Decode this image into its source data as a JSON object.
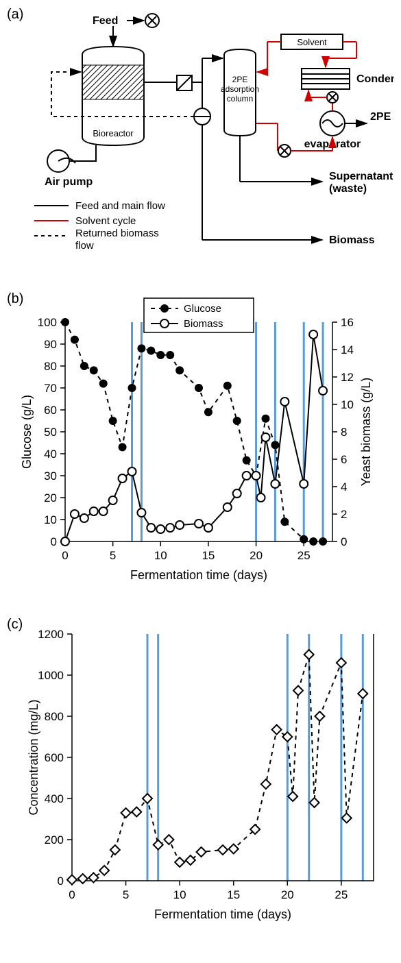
{
  "panelA": {
    "label": "(a)",
    "labels": {
      "feed": "Feed",
      "bioreactor": "Bioreactor",
      "airpump": "Air pump",
      "column": "2PE\nadsorption\ncolumn",
      "solvent": "Solvent",
      "condenser": "Condenser",
      "evaporator": "evaporator",
      "twoPE": "2PE",
      "supernatant": "Supernatant\n(waste)",
      "biomass": "Biomass"
    },
    "legend": [
      {
        "style": "solid",
        "color": "#000000",
        "text": "Feed and main flow"
      },
      {
        "style": "solid",
        "color": "#d00000",
        "text": "Solvent cycle"
      },
      {
        "style": "dash",
        "color": "#000000",
        "text": "Returned biomass\nflow"
      }
    ]
  },
  "panelB": {
    "label": "(b)",
    "xlabel": "Fermentation time (days)",
    "ylabel": "Glucose (g/L)",
    "y2label": "Yeast biomass (g/L)",
    "xlim": [
      0,
      28
    ],
    "xticks": [
      0,
      5,
      10,
      15,
      20,
      25
    ],
    "ylim": [
      0,
      100
    ],
    "yticks": [
      0,
      10,
      20,
      30,
      40,
      50,
      60,
      70,
      80,
      90,
      100
    ],
    "y2lim": [
      0,
      16
    ],
    "y2ticks": [
      0,
      2,
      4,
      6,
      8,
      10,
      12,
      14,
      16
    ],
    "vlines": [
      7,
      8,
      20,
      22,
      25,
      27
    ],
    "vline_color": "#5b9bd5",
    "legend": [
      {
        "marker": "filled",
        "dash": true,
        "text": "Glucose"
      },
      {
        "marker": "open",
        "dash": false,
        "text": "Biomass"
      }
    ],
    "glucose": [
      [
        0,
        100
      ],
      [
        1,
        92
      ],
      [
        2,
        80
      ],
      [
        3,
        78
      ],
      [
        4,
        72
      ],
      [
        5,
        55
      ],
      [
        6,
        43
      ],
      [
        7,
        70
      ],
      [
        8,
        88
      ],
      [
        9,
        87
      ],
      [
        10,
        85
      ],
      [
        11,
        85
      ],
      [
        12,
        78
      ],
      [
        14,
        70
      ],
      [
        15,
        59
      ],
      [
        17,
        71
      ],
      [
        18,
        55
      ],
      [
        19,
        37
      ],
      [
        20,
        30
      ],
      [
        21,
        56
      ],
      [
        22,
        44
      ],
      [
        23,
        9
      ],
      [
        25,
        1
      ],
      [
        26,
        0
      ],
      [
        27,
        0
      ]
    ],
    "biomass": [
      [
        0,
        0
      ],
      [
        1,
        2.0
      ],
      [
        2,
        1.7
      ],
      [
        3,
        2.2
      ],
      [
        4,
        2.2
      ],
      [
        5,
        3.0
      ],
      [
        6,
        4.6
      ],
      [
        7,
        5.1
      ],
      [
        8,
        2.1
      ],
      [
        9,
        1.0
      ],
      [
        10,
        0.9
      ],
      [
        11,
        1.0
      ],
      [
        12,
        1.2
      ],
      [
        14,
        1.3
      ],
      [
        15,
        1.0
      ],
      [
        17,
        2.5
      ],
      [
        18,
        3.5
      ],
      [
        19,
        4.8
      ],
      [
        20,
        4.8
      ],
      [
        20.5,
        3.2
      ],
      [
        21,
        7.6
      ],
      [
        22,
        4.2
      ],
      [
        23,
        10.2
      ],
      [
        25,
        4.2
      ],
      [
        26,
        15.1
      ],
      [
        27,
        11.0
      ]
    ],
    "marker_r": 6,
    "font_axis": 18,
    "font_tick": 17
  },
  "panelC": {
    "label": "(c)",
    "xlabel": "Fermentation time (days)",
    "ylabel": "Concentration (mg/L)",
    "xlim": [
      0,
      28
    ],
    "xticks": [
      0,
      5,
      10,
      15,
      20,
      25
    ],
    "ylim": [
      0,
      1200
    ],
    "yticks": [
      0,
      200,
      400,
      600,
      800,
      1000,
      1200
    ],
    "vlines": [
      7,
      8,
      20,
      22,
      25,
      27
    ],
    "vline_color": "#5b9bd5",
    "conc": [
      [
        0,
        5
      ],
      [
        1,
        10
      ],
      [
        2,
        15
      ],
      [
        3,
        50
      ],
      [
        4,
        150
      ],
      [
        5,
        330
      ],
      [
        6,
        335
      ],
      [
        7,
        400
      ],
      [
        8,
        175
      ],
      [
        9,
        200
      ],
      [
        10,
        90
      ],
      [
        11,
        100
      ],
      [
        12,
        140
      ],
      [
        14,
        150
      ],
      [
        15,
        155
      ],
      [
        17,
        250
      ],
      [
        18,
        470
      ],
      [
        19,
        735
      ],
      [
        20,
        700
      ],
      [
        20.5,
        410
      ],
      [
        21,
        925
      ],
      [
        22,
        1100
      ],
      [
        22.5,
        380
      ],
      [
        23,
        800
      ],
      [
        25,
        1060
      ],
      [
        25.5,
        305
      ],
      [
        27,
        910
      ]
    ],
    "marker_r": 7,
    "font_axis": 18,
    "font_tick": 17
  }
}
